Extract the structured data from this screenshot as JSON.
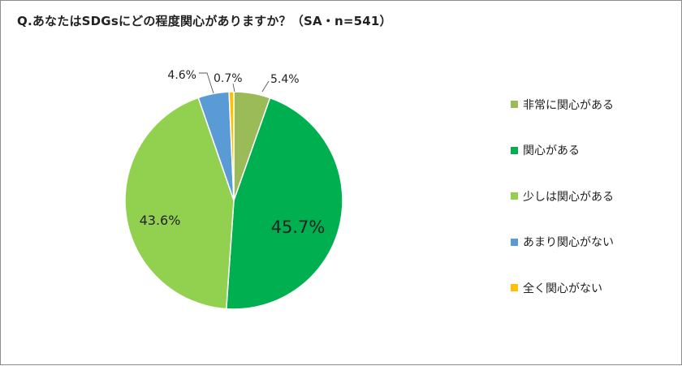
{
  "title": "Q.あなたはSDGsにどの程度関心がありますか？（SA・n=541）",
  "chart_data": {
    "type": "pie",
    "title": "Q.あなたはSDGsにどの程度関心がありますか？（SA・n=541）",
    "start_angle_deg": 0,
    "direction": "clockwise",
    "legend_position": "right",
    "slices": [
      {
        "label": "非常に関心がある",
        "value": 5.4,
        "display": "5.4%",
        "color": "#9bbb59"
      },
      {
        "label": "関心がある",
        "value": 45.7,
        "display": "45.7%",
        "color": "#00b050"
      },
      {
        "label": "少しは関心がある",
        "value": 43.6,
        "display": "43.6%",
        "color": "#92d050"
      },
      {
        "label": "あまり関心がない",
        "value": 4.6,
        "display": "4.6%",
        "color": "#5b9bd5"
      },
      {
        "label": "全く関心がない",
        "value": 0.7,
        "display": "0.7%",
        "color": "#ffc000"
      }
    ]
  }
}
